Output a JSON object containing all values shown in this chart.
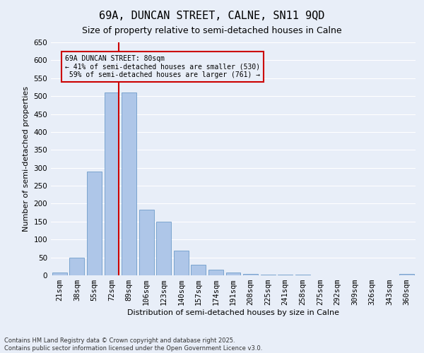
{
  "title1": "69A, DUNCAN STREET, CALNE, SN11 9QD",
  "title2": "Size of property relative to semi-detached houses in Calne",
  "xlabel": "Distribution of semi-detached houses by size in Calne",
  "ylabel": "Number of semi-detached properties",
  "footnote1": "Contains HM Land Registry data © Crown copyright and database right 2025.",
  "footnote2": "Contains public sector information licensed under the Open Government Licence v3.0.",
  "bar_labels": [
    "21sqm",
    "38sqm",
    "55sqm",
    "72sqm",
    "89sqm",
    "106sqm",
    "123sqm",
    "140sqm",
    "157sqm",
    "174sqm",
    "191sqm",
    "208sqm",
    "225sqm",
    "241sqm",
    "258sqm",
    "275sqm",
    "292sqm",
    "309sqm",
    "326sqm",
    "343sqm",
    "360sqm"
  ],
  "bar_values": [
    7,
    50,
    290,
    510,
    510,
    183,
    150,
    68,
    30,
    15,
    8,
    3,
    1,
    1,
    1,
    0,
    0,
    0,
    0,
    0,
    4
  ],
  "bar_color": "#aec6e8",
  "bar_edge_color": "#5a8fc2",
  "property_line_label": "69A DUNCAN STREET: 80sqm",
  "pct_smaller": 41,
  "pct_larger": 59,
  "count_smaller": 530,
  "count_larger": 761,
  "vline_color": "#cc0000",
  "ylim": [
    0,
    650
  ],
  "yticks": [
    0,
    50,
    100,
    150,
    200,
    250,
    300,
    350,
    400,
    450,
    500,
    550,
    600,
    650
  ],
  "bg_color": "#e8eef8",
  "grid_color": "#ffffff",
  "title_fontsize": 11,
  "subtitle_fontsize": 9,
  "axis_label_fontsize": 8,
  "tick_fontsize": 7.5,
  "footnote_fontsize": 6
}
